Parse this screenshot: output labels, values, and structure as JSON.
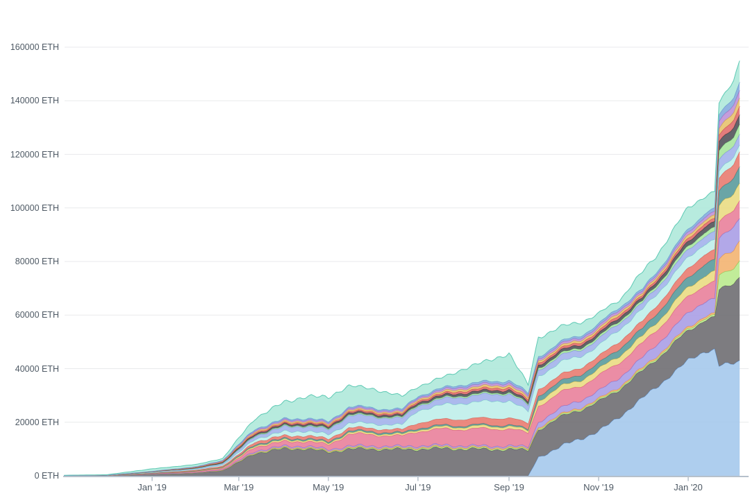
{
  "meta": {
    "background": "#ffffff",
    "description": "Stacked area chart of ETH amounts over time, no title or legend visible"
  },
  "y_axis": {
    "unit": "ETH",
    "min": 0,
    "max": 160000,
    "step": 20000,
    "ticks": [
      {
        "label": "0 ETH",
        "value": 0
      },
      {
        "label": "20000 ETH",
        "value": 20000
      },
      {
        "label": "40000 ETH",
        "value": 40000
      },
      {
        "label": "60000 ETH",
        "value": 60000
      },
      {
        "label": "80000 ETH",
        "value": 80000
      },
      {
        "label": "100000 ETH",
        "value": 100000
      },
      {
        "label": "120000 ETH",
        "value": 120000
      },
      {
        "label": "140000 ETH",
        "value": 140000
      },
      {
        "label": "160000 ETH",
        "value": 160000
      }
    ]
  },
  "x_axis": {
    "ticks": [
      {
        "label": "Jan '19",
        "date": "2019-01-01"
      },
      {
        "label": "Mar '19",
        "date": "2019-03-01"
      },
      {
        "label": "May '19",
        "date": "2019-05-01"
      },
      {
        "label": "Jul '19",
        "date": "2019-07-01"
      },
      {
        "label": "Sep '19",
        "date": "2019-09-01"
      },
      {
        "label": "Nov '19",
        "date": "2019-11-01"
      },
      {
        "label": "Jan '20",
        "date": "2020-01-01"
      }
    ]
  },
  "chart_data": {
    "type": "area",
    "stacked": true,
    "stack_order": "bottom_to_top",
    "grid": true,
    "legend": "none",
    "ylabel": "ETH",
    "ylim": [
      0,
      160000
    ],
    "x_range": [
      "2018-11-02",
      "2020-02-05"
    ],
    "dates": [
      "2018-11-02",
      "2018-12-01",
      "2019-01-01",
      "2019-02-01",
      "2019-02-18",
      "2019-03-01",
      "2019-03-12",
      "2019-04-01",
      "2019-04-15",
      "2019-05-01",
      "2019-05-15",
      "2019-06-01",
      "2019-06-20",
      "2019-07-01",
      "2019-07-20",
      "2019-08-01",
      "2019-09-01",
      "2019-09-14",
      "2019-09-21",
      "2019-10-15",
      "2019-11-01",
      "2019-11-15",
      "2019-12-01",
      "2019-12-10",
      "2020-01-01",
      "2020-01-12",
      "2020-01-19",
      "2020-01-22",
      "2020-02-01",
      "2020-02-05"
    ],
    "approx_total_eth": [
      200,
      400,
      2600,
      4300,
      6500,
      14000,
      21500,
      27500,
      29500,
      29500,
      33500,
      32500,
      29500,
      33500,
      37000,
      40000,
      45500,
      34000,
      52000,
      57000,
      60000,
      66000,
      76000,
      82000,
      100000,
      105000,
      106000,
      139000,
      148000,
      155300
    ],
    "series": [
      {
        "name": "sky-blue",
        "fill": "#a3c7ec",
        "line": "#6e9fd8",
        "values": [
          0,
          0,
          0,
          0,
          0,
          0,
          0,
          0,
          0,
          0,
          0,
          0,
          0,
          0,
          0,
          0,
          0,
          0,
          7000,
          13000,
          16500,
          22000,
          29000,
          33000,
          43000,
          46500,
          47000,
          41000,
          42000,
          43000
        ]
      },
      {
        "name": "dark-gray",
        "fill": "#6b6a6e",
        "line": "#55545a",
        "values": [
          50,
          100,
          600,
          1100,
          2000,
          5000,
          8500,
          10000,
          10200,
          8800,
          10000,
          10000,
          9800,
          10000,
          10200,
          10000,
          9800,
          9600,
          10500,
          11000,
          10800,
          10500,
          10000,
          10500,
          11000,
          12000,
          12000,
          28000,
          30000,
          31900
        ]
      },
      {
        "name": "light-green",
        "fill": "#b8e98b",
        "line": "#8cc65a",
        "values": [
          0,
          0,
          20,
          50,
          80,
          150,
          250,
          300,
          300,
          300,
          350,
          350,
          350,
          400,
          400,
          400,
          400,
          400,
          450,
          450,
          500,
          500,
          550,
          600,
          700,
          700,
          700,
          5500,
          5800,
          6000
        ]
      },
      {
        "name": "orange",
        "fill": "#f3b26d",
        "line": "#e39347",
        "values": [
          0,
          0,
          20,
          50,
          80,
          150,
          200,
          250,
          250,
          250,
          300,
          300,
          300,
          350,
          350,
          350,
          400,
          400,
          450,
          450,
          500,
          500,
          600,
          600,
          700,
          700,
          700,
          6500,
          6800,
          7000
        ]
      },
      {
        "name": "violet",
        "fill": "#a79ce5",
        "line": "#8677d0",
        "values": [
          0,
          0,
          30,
          80,
          150,
          300,
          400,
          450,
          450,
          450,
          500,
          500,
          500,
          500,
          500,
          500,
          500,
          500,
          2000,
          2600,
          3000,
          3400,
          3800,
          4200,
          5200,
          5600,
          5700,
          7500,
          8300,
          8600
        ]
      },
      {
        "name": "rose",
        "fill": "#e87d98",
        "line": "#d85680",
        "values": [
          10,
          20,
          150,
          300,
          500,
          900,
          1600,
          1700,
          1800,
          1800,
          4500,
          4200,
          3800,
          5500,
          6000,
          6200,
          6500,
          5000,
          6200,
          5500,
          5500,
          5800,
          5200,
          5500,
          6000,
          6300,
          6400,
          6000,
          6300,
          6700
        ]
      },
      {
        "name": "yellow",
        "fill": "#e9db80",
        "line": "#cdbb4f",
        "values": [
          5,
          10,
          60,
          150,
          250,
          400,
          500,
          550,
          550,
          550,
          600,
          600,
          600,
          650,
          800,
          900,
          1000,
          900,
          2000,
          2200,
          2400,
          2600,
          2600,
          3000,
          3400,
          3600,
          3650,
          6000,
          6400,
          6700
        ]
      },
      {
        "name": "teal",
        "fill": "#55999a",
        "line": "#3d7f80",
        "values": [
          5,
          10,
          50,
          120,
          200,
          350,
          450,
          500,
          500,
          500,
          550,
          550,
          550,
          600,
          550,
          500,
          500,
          500,
          1800,
          2000,
          2200,
          2600,
          2800,
          3200,
          3800,
          4200,
          4300,
          5500,
          5900,
          6200
        ]
      },
      {
        "name": "salmon",
        "fill": "#e8796d",
        "line": "#d95a4e",
        "values": [
          10,
          20,
          120,
          300,
          450,
          600,
          1000,
          1100,
          1100,
          1100,
          1200,
          1200,
          1200,
          2000,
          2300,
          2400,
          2600,
          2200,
          2400,
          2500,
          2600,
          2700,
          2800,
          3000,
          3400,
          3600,
          3650,
          5000,
          5100,
          5200
        ]
      },
      {
        "name": "pale-cyan",
        "fill": "#bdeee9",
        "line": "#7fcfcb",
        "values": [
          15,
          30,
          200,
          300,
          450,
          800,
          1000,
          1600,
          1700,
          1700,
          1800,
          1800,
          1800,
          4600,
          5500,
          6000,
          6500,
          4500,
          5000,
          4500,
          4000,
          4500,
          4500,
          4200,
          4000,
          3900,
          3900,
          2700,
          2650,
          2600
        ]
      },
      {
        "name": "periwinkle",
        "fill": "#a0b1ea",
        "line": "#7b91dd",
        "values": [
          15,
          30,
          200,
          350,
          500,
          900,
          1100,
          1700,
          1800,
          1800,
          2800,
          2600,
          2400,
          1800,
          2200,
          2400,
          2600,
          2200,
          2300,
          2400,
          2400,
          2450,
          2200,
          2400,
          2800,
          3000,
          3050,
          4000,
          4100,
          4200
        ]
      },
      {
        "name": "green",
        "fill": "#a6e59b",
        "line": "#77c97e",
        "values": [
          0,
          0,
          30,
          80,
          120,
          250,
          300,
          350,
          350,
          350,
          400,
          400,
          400,
          450,
          450,
          500,
          500,
          450,
          700,
          750,
          800,
          850,
          800,
          1000,
          1300,
          1500,
          1550,
          3400,
          3500,
          3600
        ]
      },
      {
        "name": "charcoal",
        "fill": "#4e4d55",
        "line": "#3a3940",
        "values": [
          5,
          10,
          60,
          150,
          250,
          450,
          550,
          600,
          650,
          650,
          700,
          700,
          700,
          800,
          900,
          950,
          1000,
          900,
          1100,
          1150,
          1200,
          1300,
          1200,
          1400,
          1800,
          2000,
          2050,
          3400,
          3500,
          3600
        ]
      },
      {
        "name": "red",
        "fill": "#e06a6a",
        "line": "#c94b4b",
        "values": [
          5,
          10,
          50,
          120,
          200,
          350,
          450,
          500,
          500,
          500,
          550,
          550,
          550,
          600,
          700,
          800,
          875,
          800,
          800,
          850,
          900,
          950,
          800,
          900,
          1150,
          1250,
          1280,
          2500,
          2800,
          3050
        ]
      },
      {
        "name": "gold",
        "fill": "#e6c06a",
        "line": "#cda345",
        "values": [
          5,
          10,
          50,
          120,
          200,
          350,
          450,
          500,
          500,
          500,
          550,
          550,
          550,
          600,
          700,
          800,
          875,
          800,
          800,
          850,
          900,
          950,
          800,
          900,
          1150,
          1250,
          1280,
          2500,
          2800,
          3050
        ]
      },
      {
        "name": "plum",
        "fill": "#bd8fd6",
        "line": "#a36cc2",
        "values": [
          5,
          10,
          50,
          120,
          200,
          350,
          450,
          500,
          500,
          500,
          550,
          550,
          550,
          600,
          700,
          800,
          875,
          800,
          800,
          850,
          900,
          950,
          800,
          900,
          1150,
          1250,
          1280,
          2500,
          2800,
          3050
        ]
      },
      {
        "name": "steel-blue",
        "fill": "#82aadd",
        "line": "#5f8fcb",
        "values": [
          5,
          10,
          50,
          120,
          200,
          350,
          450,
          500,
          500,
          500,
          550,
          550,
          550,
          600,
          700,
          800,
          875,
          800,
          800,
          850,
          900,
          950,
          800,
          900,
          1150,
          1250,
          1280,
          2500,
          2800,
          3050
        ]
      },
      {
        "name": "mint",
        "fill": "#ade8da",
        "line": "#5ec9b4",
        "values": [
          60,
          130,
          860,
          790,
          670,
          2350,
          3850,
          6400,
          7850,
          9250,
          7600,
          7100,
          4900,
          3450,
          4050,
          5700,
          9700,
          3250,
          6900,
          5100,
          4000,
          2500,
          6750,
          5800,
          8300,
          6000,
          6100,
          4500,
          6450,
          7800
        ]
      }
    ]
  }
}
